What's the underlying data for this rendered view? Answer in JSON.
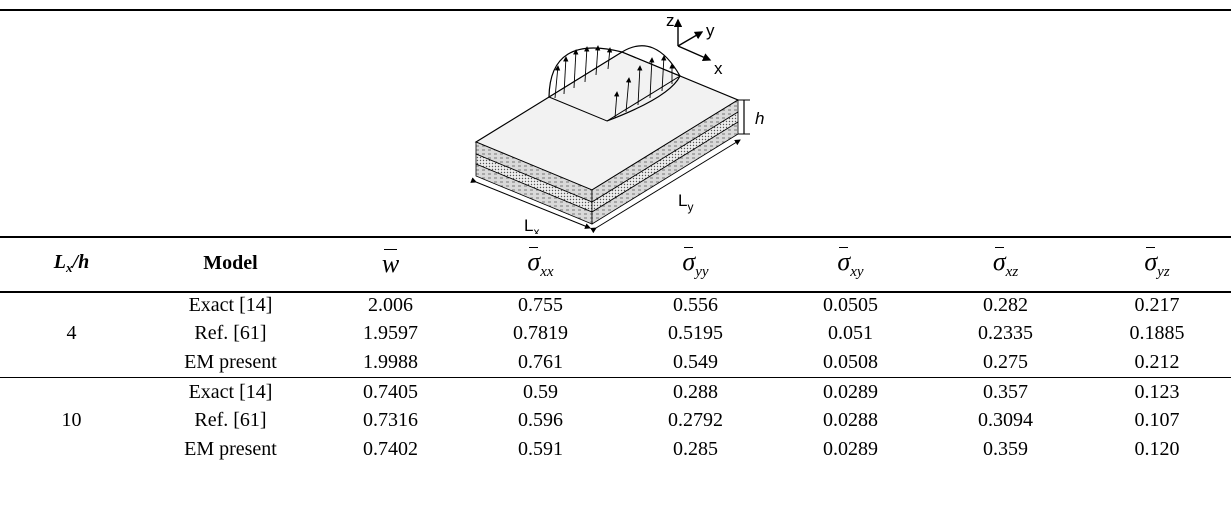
{
  "figure": {
    "axis_labels": {
      "z": "z",
      "y": "y",
      "x": "x"
    },
    "dim_labels": {
      "h": "h",
      "lx_main": "L",
      "lx_sub": "x",
      "ly_main": "L",
      "ly_sub": "y"
    }
  },
  "table": {
    "headers": {
      "lxh_main": "L",
      "lxh_sub": "x",
      "lxh_rest": "/h",
      "model": "Model",
      "w": "w",
      "sigma": "σ",
      "sub_xx": "xx",
      "sub_yy": "yy",
      "sub_xy": "xy",
      "sub_xz": "xz",
      "sub_yz": "yz"
    },
    "groups": [
      {
        "ratio": "4",
        "rows": [
          {
            "model": "Exact [14]",
            "w": "2.006",
            "sxx": "0.755",
            "syy": "0.556",
            "sxy": "0.0505",
            "sxz": "0.282",
            "syz": "0.217"
          },
          {
            "model": "Ref. [61]",
            "w": "1.9597",
            "sxx": "0.7819",
            "syy": "0.5195",
            "sxy": "0.051",
            "sxz": "0.2335",
            "syz": "0.1885"
          },
          {
            "model": "EM present",
            "w": "1.9988",
            "sxx": "0.761",
            "syy": "0.549",
            "sxy": "0.0508",
            "sxz": "0.275",
            "syz": "0.212"
          }
        ]
      },
      {
        "ratio": "10",
        "rows": [
          {
            "model": "Exact [14]",
            "w": "0.7405",
            "sxx": "0.59",
            "syy": "0.288",
            "sxy": "0.0289",
            "sxz": "0.357",
            "syz": "0.123"
          },
          {
            "model": "Ref. [61]",
            "w": "0.7316",
            "sxx": "0.596",
            "syy": "0.2792",
            "sxy": "0.0288",
            "sxz": "0.3094",
            "syz": "0.107"
          },
          {
            "model": "EM present",
            "w": "0.7402",
            "sxx": "0.591",
            "syy": "0.285",
            "sxy": "0.0289",
            "sxz": "0.359",
            "syz": "0.120"
          }
        ]
      }
    ]
  }
}
